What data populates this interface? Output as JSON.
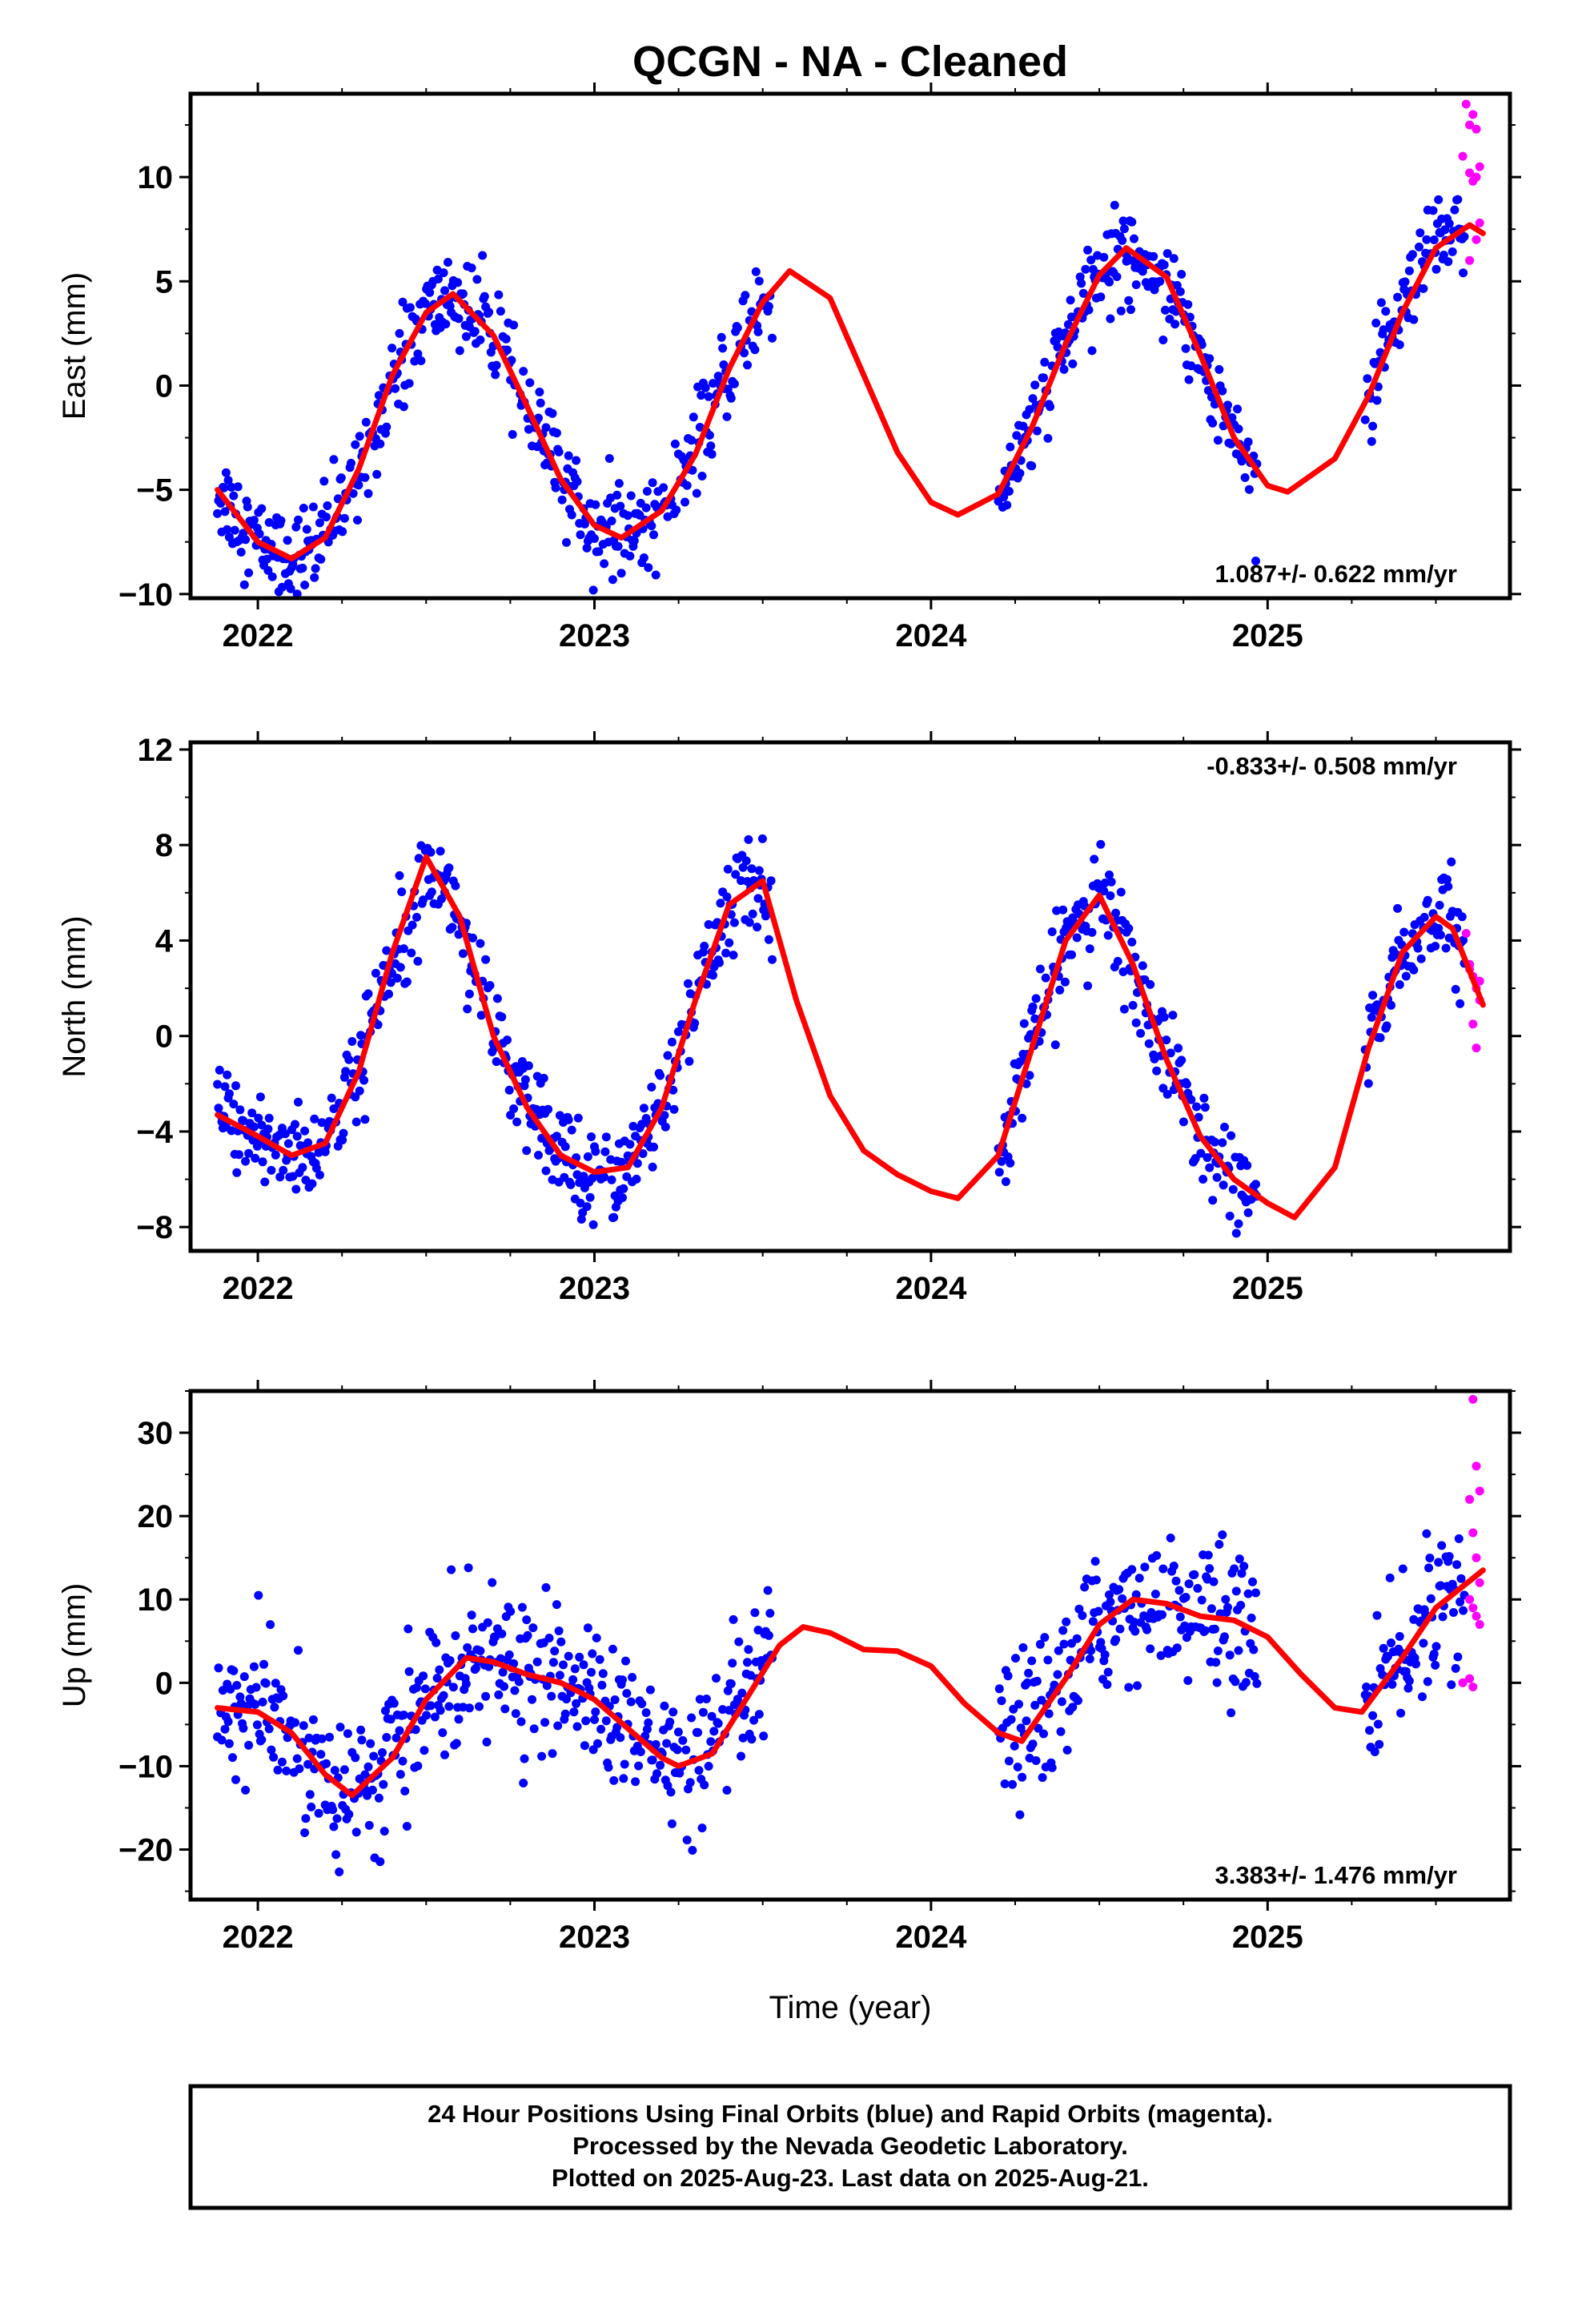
{
  "title": "QCGN  - NA - Cleaned",
  "x_axis_label": "Time (year)",
  "footer": [
    "24 Hour Positions Using Final Orbits (blue) and Rapid Orbits (magenta).",
    "Processed by the Nevada Geodetic Laboratory.",
    "Plotted on 2025-Aug-23. Last data on 2025-Aug-21."
  ],
  "colors": {
    "final_orbits": "#0000ff",
    "rapid_orbits": "#ff00ff",
    "model": "#ff0000",
    "frame": "#000000"
  },
  "chart_data": [
    {
      "type": "scatter",
      "name": "east",
      "ylabel": "East (mm)",
      "xlim": [
        2021.8,
        2025.72
      ],
      "ylim": [
        -10.2,
        14
      ],
      "x_ticks": [
        2022,
        2023,
        2024,
        2025
      ],
      "y_ticks": [
        -10,
        -5,
        0,
        5,
        10
      ],
      "grid": false,
      "rate_label": "1.087+/- 0.622 mm/yr",
      "rate_position": "bottom-right",
      "model_curve": {
        "x": [
          2021.88,
          2022.0,
          2022.1,
          2022.2,
          2022.3,
          2022.4,
          2022.5,
          2022.58,
          2022.7,
          2022.8,
          2022.9,
          2023.0,
          2023.08,
          2023.2,
          2023.3,
          2023.4,
          2023.5,
          2023.58,
          2023.7,
          2023.8,
          2023.9,
          2024.0,
          2024.08,
          2024.2,
          2024.3,
          2024.4,
          2024.5,
          2024.58,
          2024.7,
          2024.8,
          2024.9,
          2025.0,
          2025.06,
          2025.2,
          2025.3,
          2025.4,
          2025.5,
          2025.6,
          2025.64
        ],
        "y": [
          -5.0,
          -7.5,
          -8.3,
          -7.3,
          -4.0,
          0.5,
          3.5,
          4.4,
          2.4,
          -1.0,
          -4.5,
          -6.7,
          -7.3,
          -6.0,
          -3.3,
          0.8,
          4.0,
          5.5,
          4.2,
          0.5,
          -3.2,
          -5.6,
          -6.2,
          -5.2,
          -2.0,
          2.0,
          5.3,
          6.6,
          5.2,
          1.5,
          -2.5,
          -4.8,
          -5.1,
          -3.5,
          -0.5,
          3.5,
          6.6,
          7.7,
          7.3
        ]
      },
      "rapid_orbit_points": {
        "x": [
          2025.59,
          2025.6,
          2025.61,
          2025.62,
          2025.63,
          2025.6,
          2025.61,
          2025.62,
          2025.58,
          2025.6,
          2025.62,
          2025.63
        ],
        "y": [
          13.5,
          12.5,
          13.0,
          12.3,
          10.5,
          10.2,
          9.8,
          10.0,
          11.0,
          6.0,
          7.0,
          7.8
        ]
      }
    },
    {
      "type": "scatter",
      "name": "north",
      "ylabel": "North (mm)",
      "xlim": [
        2021.8,
        2025.72
      ],
      "ylim": [
        -9,
        12.3
      ],
      "x_ticks": [
        2022,
        2023,
        2024,
        2025
      ],
      "y_ticks": [
        -8,
        -4,
        0,
        4,
        8,
        12
      ],
      "grid": false,
      "rate_label": "-0.833+/- 0.508 mm/yr",
      "rate_position": "top-right",
      "model_curve": {
        "x": [
          2021.88,
          2022.0,
          2022.1,
          2022.2,
          2022.3,
          2022.4,
          2022.5,
          2022.6,
          2022.7,
          2022.8,
          2022.9,
          2023.0,
          2023.1,
          2023.2,
          2023.3,
          2023.4,
          2023.5,
          2023.6,
          2023.7,
          2023.8,
          2023.9,
          2024.0,
          2024.08,
          2024.2,
          2024.3,
          2024.4,
          2024.5,
          2024.6,
          2024.7,
          2024.8,
          2024.9,
          2025.0,
          2025.08,
          2025.2,
          2025.3,
          2025.4,
          2025.5,
          2025.55,
          2025.64
        ],
        "y": [
          -3.3,
          -4.2,
          -5.0,
          -4.5,
          -1.5,
          3.5,
          7.5,
          5.0,
          0.0,
          -3.0,
          -5.0,
          -5.7,
          -5.5,
          -3.0,
          1.5,
          5.5,
          6.5,
          1.5,
          -2.5,
          -4.8,
          -5.8,
          -6.5,
          -6.8,
          -5.0,
          -0.5,
          4.0,
          5.9,
          3.0,
          -1.0,
          -4.2,
          -6.0,
          -7.0,
          -7.6,
          -5.5,
          -0.5,
          3.5,
          5.0,
          4.5,
          1.3
        ]
      },
      "rapid_orbit_points": {
        "x": [
          2025.59,
          2025.6,
          2025.61,
          2025.62,
          2025.63,
          2025.6,
          2025.61,
          2025.62,
          2025.63
        ],
        "y": [
          4.3,
          3.0,
          2.5,
          2.0,
          1.5,
          2.8,
          0.5,
          -0.5,
          2.3
        ]
      }
    },
    {
      "type": "scatter",
      "name": "up",
      "ylabel": "Up (mm)",
      "xlim": [
        2021.8,
        2025.72
      ],
      "ylim": [
        -26,
        35
      ],
      "x_ticks": [
        2022,
        2023,
        2024,
        2025
      ],
      "y_ticks": [
        -20,
        -10,
        0,
        10,
        20,
        30
      ],
      "grid": false,
      "rate_label": "3.383+/- 1.476 mm/yr",
      "rate_position": "bottom-right",
      "model_curve": {
        "x": [
          2021.88,
          2022.0,
          2022.1,
          2022.2,
          2022.28,
          2022.4,
          2022.5,
          2022.62,
          2022.7,
          2022.8,
          2022.9,
          2023.0,
          2023.1,
          2023.2,
          2023.25,
          2023.35,
          2023.45,
          2023.55,
          2023.62,
          2023.7,
          2023.8,
          2023.9,
          2024.0,
          2024.1,
          2024.2,
          2024.27,
          2024.4,
          2024.5,
          2024.6,
          2024.7,
          2024.8,
          2024.9,
          2025.0,
          2025.1,
          2025.2,
          2025.28,
          2025.4,
          2025.5,
          2025.64
        ],
        "y": [
          -3.0,
          -3.5,
          -6.0,
          -11.0,
          -13.5,
          -9.0,
          -2.0,
          3.0,
          2.5,
          1.0,
          0.0,
          -2.0,
          -5.5,
          -9.0,
          -10.0,
          -8.5,
          -2.0,
          4.5,
          6.7,
          6.0,
          4.0,
          3.8,
          2.0,
          -2.5,
          -6.0,
          -7.0,
          0.5,
          7.0,
          10.0,
          9.5,
          8.0,
          7.5,
          5.5,
          1.0,
          -3.0,
          -3.5,
          3.0,
          9.0,
          13.5
        ]
      },
      "rapid_orbit_points": {
        "x": [
          2025.61,
          2025.62,
          2025.63,
          2025.6,
          2025.61,
          2025.62,
          2025.63,
          2025.6,
          2025.61,
          2025.62,
          2025.63,
          2025.58,
          2025.6,
          2025.61
        ],
        "y": [
          34.0,
          26.0,
          23.0,
          22.0,
          18.0,
          15.0,
          12.0,
          10.0,
          9.0,
          8.0,
          7.0,
          0.0,
          0.5,
          -0.5
        ]
      }
    }
  ]
}
